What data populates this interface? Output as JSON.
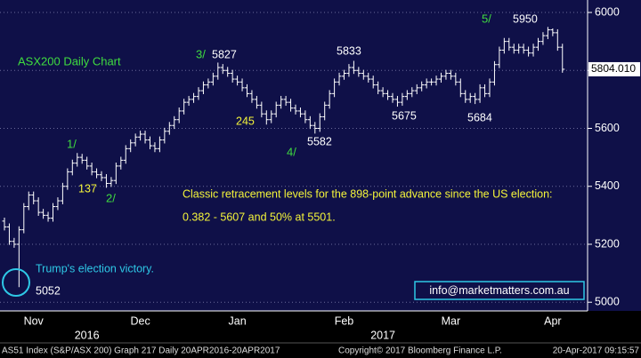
{
  "chart_data": {
    "type": "ohlc",
    "title": "ASX200 Daily Chart",
    "categories": [
      null,
      null,
      null,
      null,
      null,
      null,
      "Nov",
      null,
      null,
      null,
      null,
      null,
      null,
      null,
      null,
      null,
      null,
      null,
      null,
      null,
      null,
      null,
      null,
      null,
      null,
      null,
      null,
      null,
      "Dec",
      null,
      null,
      null,
      null,
      null,
      null,
      null,
      null,
      null,
      null,
      null,
      null,
      null,
      null,
      null,
      null,
      null,
      null,
      null,
      "Jan",
      null,
      null,
      null,
      null,
      null,
      null,
      null,
      null,
      null,
      null,
      null,
      null,
      null,
      null,
      null,
      null,
      null,
      null,
      null,
      null,
      null,
      "Feb",
      null,
      null,
      null,
      null,
      null,
      null,
      null,
      null,
      null,
      null,
      null,
      null,
      null,
      null,
      null,
      null,
      null,
      null,
      null,
      null,
      null,
      "Mar",
      null,
      null,
      null,
      null,
      null,
      null,
      null,
      null,
      null,
      null,
      null,
      null,
      null,
      null,
      null,
      null,
      null,
      null,
      null,
      null,
      "Apr",
      null,
      null
    ],
    "year_labels": [
      null,
      null,
      null,
      null,
      null,
      null,
      null,
      null,
      null,
      null,
      null,
      null,
      null,
      null,
      null,
      null,
      null,
      "2016",
      null,
      null,
      null,
      null,
      null,
      null,
      null,
      null,
      null,
      null,
      null,
      null,
      null,
      null,
      null,
      null,
      null,
      null,
      null,
      null,
      null,
      null,
      null,
      null,
      null,
      null,
      null,
      null,
      null,
      null,
      null,
      null,
      null,
      null,
      null,
      null,
      null,
      null,
      null,
      null,
      null,
      null,
      null,
      null,
      null,
      null,
      null,
      null,
      null,
      null,
      null,
      null,
      null,
      null,
      null,
      null,
      null,
      null,
      null,
      null,
      "2017",
      null,
      null,
      null,
      null,
      null,
      null,
      null,
      null,
      null,
      null,
      null,
      null,
      null,
      null,
      null,
      null,
      null,
      null,
      null,
      null,
      null,
      null,
      null,
      null,
      null,
      null,
      null,
      null,
      null,
      null,
      null,
      null,
      null,
      null,
      null,
      null
    ],
    "open": [
      5280,
      5260,
      5210,
      5200,
      5250,
      5330,
      5370,
      5350,
      5310,
      5300,
      5290,
      5330,
      5350,
      5400,
      5450,
      5480,
      5500,
      5490,
      5470,
      5450,
      5440,
      5430,
      5410,
      5420,
      5470,
      5490,
      5530,
      5550,
      5570,
      5580,
      5560,
      5540,
      5530,
      5560,
      5590,
      5610,
      5630,
      5660,
      5690,
      5700,
      5710,
      5730,
      5750,
      5760,
      5780,
      5810,
      5800,
      5790,
      5770,
      5760,
      5740,
      5720,
      5700,
      5680,
      5650,
      5630,
      5650,
      5680,
      5700,
      5690,
      5670,
      5660,
      5650,
      5630,
      5610,
      5600,
      5640,
      5680,
      5720,
      5760,
      5780,
      5790,
      5810,
      5800,
      5790,
      5780,
      5770,
      5750,
      5730,
      5720,
      5710,
      5700,
      5690,
      5710,
      5720,
      5730,
      5740,
      5750,
      5760,
      5760,
      5770,
      5780,
      5790,
      5780,
      5760,
      5720,
      5700,
      5710,
      5700,
      5740,
      5720,
      5760,
      5820,
      5870,
      5900,
      5880,
      5870,
      5880,
      5870,
      5860,
      5880,
      5900,
      5920,
      5940,
      5930,
      5880
    ],
    "high": [
      5292,
      5272,
      5222,
      5262,
      5342,
      5382,
      5382,
      5362,
      5322,
      5312,
      5342,
      5362,
      5412,
      5462,
      5492,
      5515,
      5512,
      5502,
      5482,
      5462,
      5452,
      5442,
      5432,
      5482,
      5502,
      5542,
      5562,
      5582,
      5592,
      5592,
      5572,
      5552,
      5572,
      5602,
      5622,
      5642,
      5672,
      5702,
      5712,
      5722,
      5742,
      5762,
      5772,
      5792,
      5827,
      5822,
      5812,
      5802,
      5782,
      5772,
      5752,
      5732,
      5712,
      5692,
      5662,
      5662,
      5692,
      5712,
      5712,
      5702,
      5682,
      5672,
      5662,
      5642,
      5622,
      5652,
      5692,
      5732,
      5772,
      5792,
      5802,
      5822,
      5833,
      5812,
      5802,
      5792,
      5782,
      5762,
      5742,
      5732,
      5722,
      5712,
      5722,
      5732,
      5742,
      5752,
      5762,
      5772,
      5772,
      5782,
      5792,
      5802,
      5802,
      5792,
      5772,
      5732,
      5722,
      5722,
      5752,
      5752,
      5772,
      5832,
      5882,
      5912,
      5912,
      5892,
      5892,
      5892,
      5882,
      5892,
      5912,
      5932,
      5950,
      5945,
      5942,
      5892
    ],
    "low": [
      5248,
      5198,
      5188,
      5052,
      5238,
      5318,
      5338,
      5298,
      5288,
      5278,
      5278,
      5318,
      5338,
      5388,
      5438,
      5468,
      5478,
      5458,
      5438,
      5428,
      5418,
      5395,
      5398,
      5408,
      5458,
      5478,
      5518,
      5538,
      5558,
      5548,
      5528,
      5518,
      5518,
      5548,
      5578,
      5598,
      5618,
      5648,
      5678,
      5688,
      5698,
      5718,
      5738,
      5748,
      5768,
      5788,
      5778,
      5758,
      5748,
      5728,
      5708,
      5688,
      5668,
      5638,
      5613,
      5618,
      5638,
      5668,
      5678,
      5658,
      5648,
      5638,
      5618,
      5598,
      5582,
      5588,
      5628,
      5668,
      5708,
      5748,
      5768,
      5778,
      5788,
      5778,
      5768,
      5758,
      5738,
      5718,
      5708,
      5698,
      5688,
      5675,
      5678,
      5698,
      5708,
      5718,
      5728,
      5738,
      5748,
      5748,
      5758,
      5768,
      5768,
      5748,
      5708,
      5688,
      5688,
      5684,
      5688,
      5708,
      5708,
      5748,
      5808,
      5858,
      5868,
      5858,
      5858,
      5858,
      5848,
      5848,
      5868,
      5888,
      5908,
      5918,
      5868,
      5792
    ],
    "close": [
      5260,
      5210,
      5200,
      5250,
      5330,
      5370,
      5350,
      5310,
      5300,
      5290,
      5330,
      5350,
      5400,
      5450,
      5480,
      5500,
      5490,
      5470,
      5450,
      5440,
      5430,
      5410,
      5420,
      5470,
      5490,
      5530,
      5550,
      5570,
      5580,
      5560,
      5540,
      5530,
      5560,
      5590,
      5610,
      5630,
      5660,
      5690,
      5700,
      5710,
      5730,
      5750,
      5760,
      5780,
      5810,
      5800,
      5790,
      5770,
      5760,
      5740,
      5720,
      5700,
      5680,
      5650,
      5630,
      5650,
      5680,
      5700,
      5690,
      5670,
      5660,
      5650,
      5630,
      5610,
      5600,
      5640,
      5680,
      5720,
      5760,
      5780,
      5790,
      5810,
      5800,
      5790,
      5780,
      5770,
      5750,
      5730,
      5720,
      5710,
      5700,
      5690,
      5710,
      5720,
      5730,
      5740,
      5750,
      5760,
      5760,
      5770,
      5780,
      5790,
      5780,
      5760,
      5720,
      5700,
      5710,
      5700,
      5740,
      5720,
      5760,
      5820,
      5870,
      5900,
      5880,
      5870,
      5880,
      5870,
      5860,
      5880,
      5900,
      5920,
      5940,
      5930,
      5880,
      5804.01
    ],
    "last_value_label": "5804.010",
    "color": "#ffffff",
    "ylim": [
      4970,
      6043
    ],
    "yticks": [
      5000,
      5200,
      5400,
      5600,
      5800,
      6000
    ],
    "grid": true,
    "annotations": {
      "peak_5950": "5950",
      "wave_5": "5/",
      "wave_3": "3/",
      "peak_5827": "5827",
      "peak_5833": "5833",
      "drop_245": "245",
      "low_5582": "5582",
      "wave_4": "4/",
      "low_5675": "5675",
      "low_5684": "5684",
      "wave_1": "1/",
      "drop_137": "137",
      "wave_2": "2/",
      "election": "Trump's election victory.",
      "low_5052": "5052",
      "retracement_1": "Classic retracement levels for the 898-point advance since the US election:",
      "retracement_2": "0.382 - 5607 and 50% at 5501.",
      "email": "info@marketmatters.com.au"
    },
    "footer": {
      "left": "AS51 Index (S&P/ASX 200) Graph 217  Daily 20APR2016-20APR2017",
      "center": "Copyright© 2017 Bloomberg Finance L.P.",
      "right": "20-Apr-2017 09:15:57"
    }
  }
}
